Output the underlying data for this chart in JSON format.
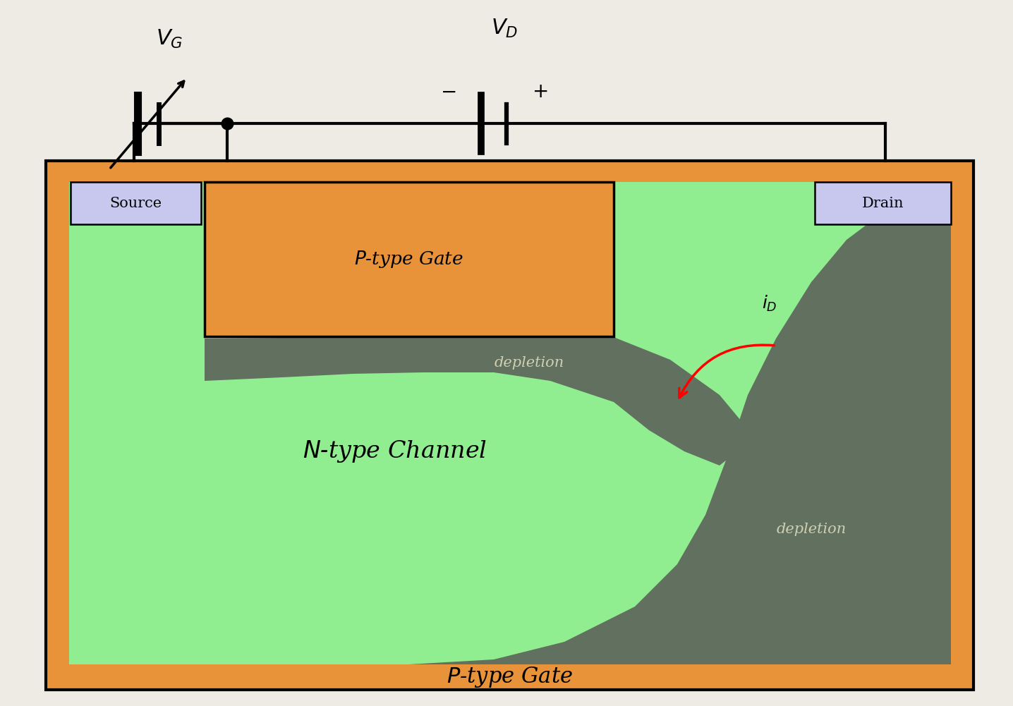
{
  "bg_color": "#eeebe5",
  "orange_color": "#E8923A",
  "green_color": "#90EE90",
  "depletion_color": "#627060",
  "label_box_color": "#c8c8ee",
  "source_label": "Source",
  "drain_label": "Drain",
  "gate_top_label": "$P$-type Gate",
  "gate_bottom_label": "$P$-type Gate",
  "channel_label": "$N$-type Channel",
  "depletion_top_label": "depletion",
  "depletion_bot_label": "depletion",
  "vg_label": "$V_G$",
  "vd_label": "$V_D$",
  "id_label": "$i_D$",
  "figw": 14.36,
  "figh": 10.01
}
